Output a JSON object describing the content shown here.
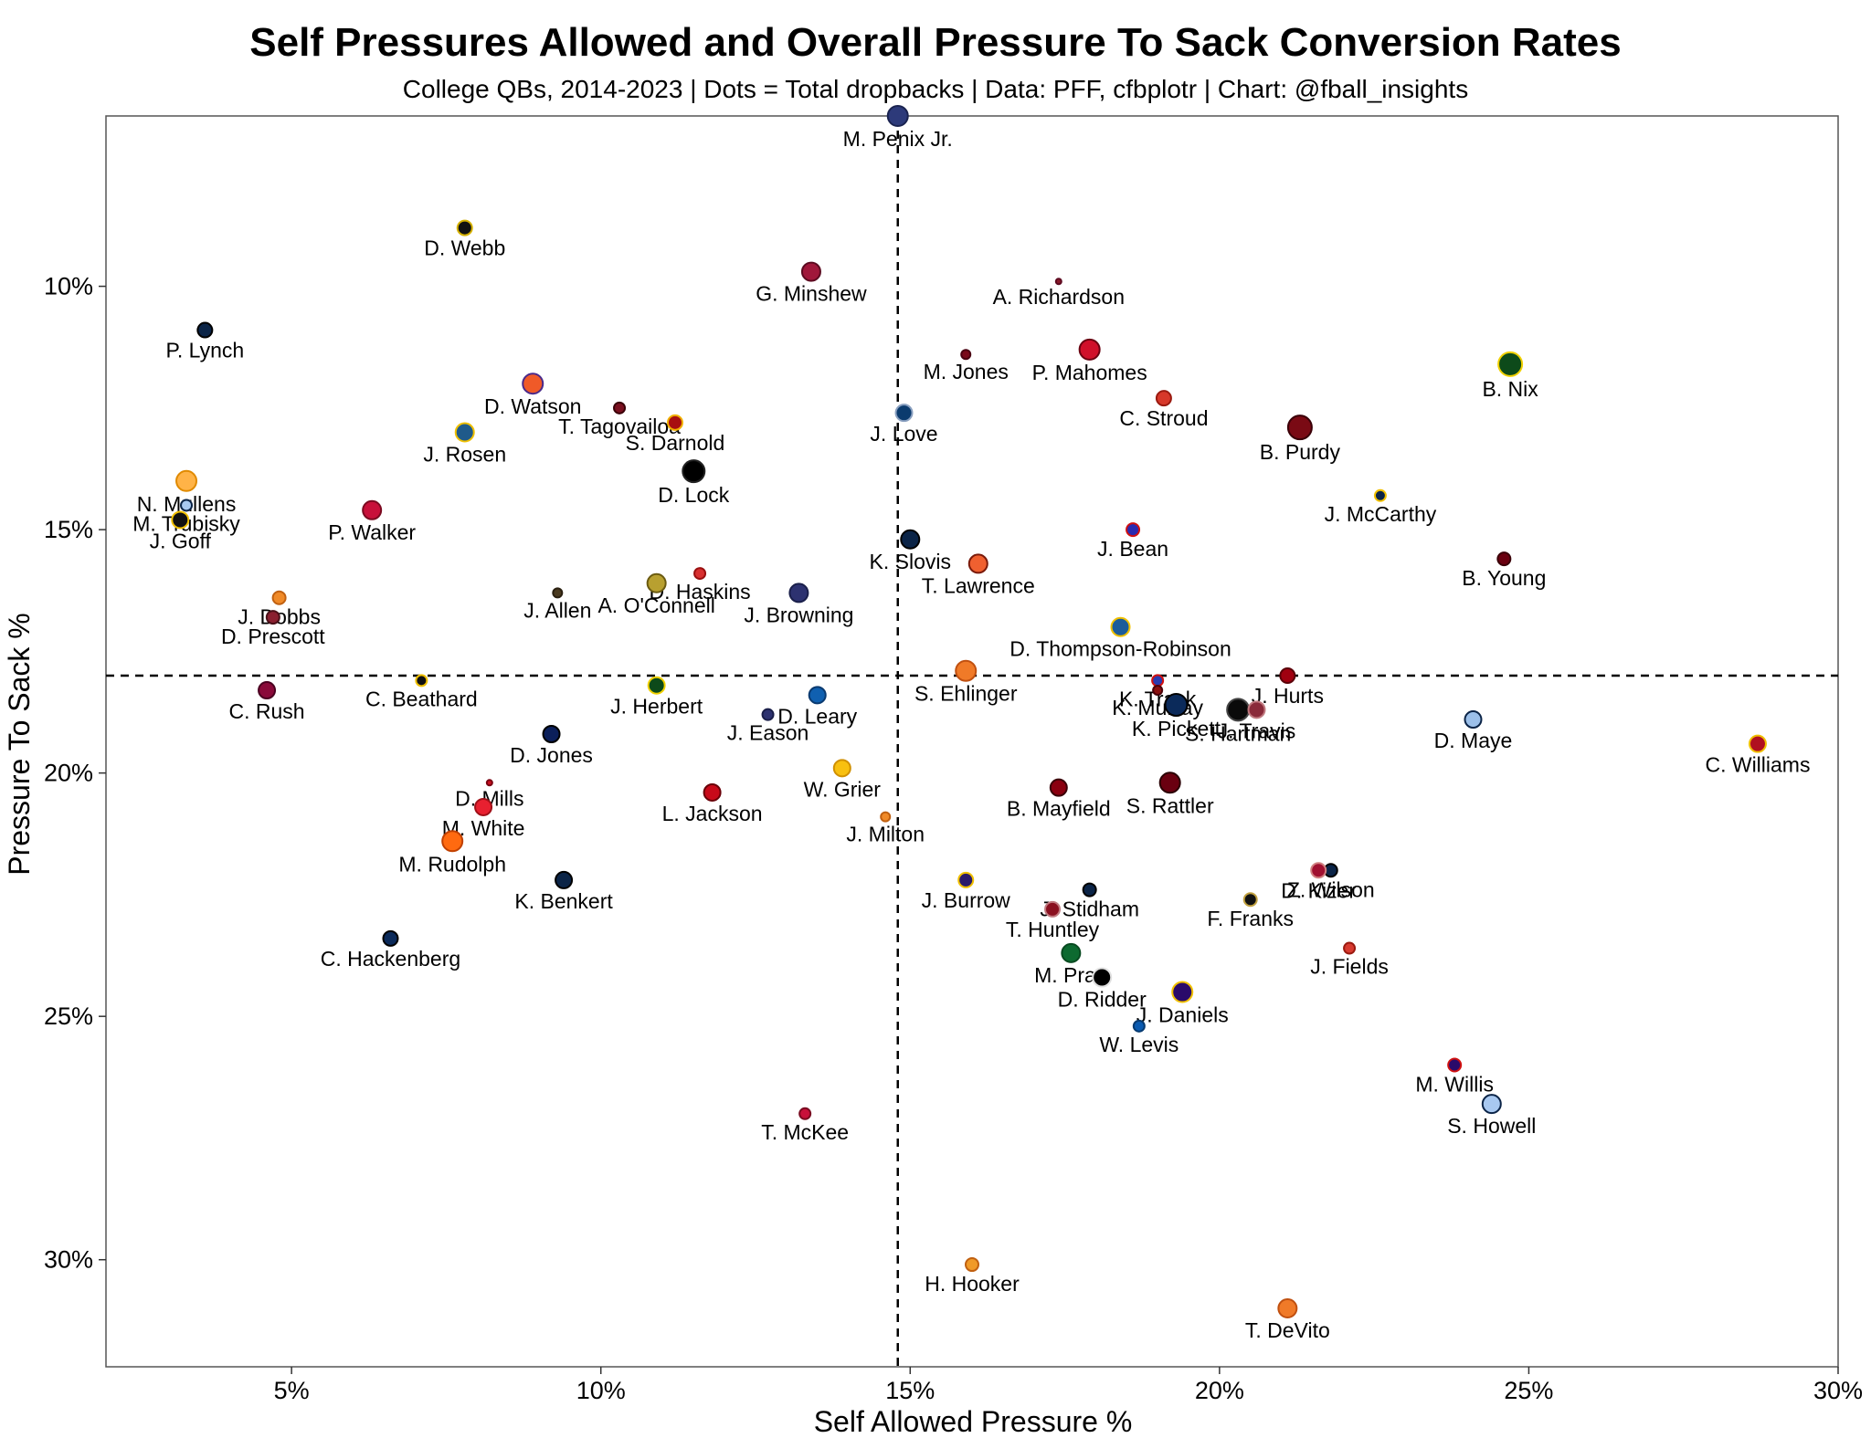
{
  "chart_data": {
    "type": "scatter",
    "title": "Self Pressures Allowed and Overall Pressure To Sack Conversion Rates",
    "subtitle": "College QBs, 2014-2023 | Dots = Total dropbacks | Data: PFF, cfbplotr | Chart: @fball_insights",
    "xlabel": "Self Allowed Pressure %",
    "ylabel": "Pressure To Sack %",
    "xlim": [
      2.0,
      30.0
    ],
    "ylim": [
      6.5,
      32.2
    ],
    "y_reversed": true,
    "x_ticks": [
      5,
      10,
      15,
      20,
      25,
      30
    ],
    "x_tick_labels": [
      "5%",
      "10%",
      "15%",
      "20%",
      "25%",
      "30%"
    ],
    "y_ticks": [
      10,
      15,
      20,
      25,
      30
    ],
    "y_tick_labels": [
      "10%",
      "15%",
      "20%",
      "25%",
      "30%"
    ],
    "ref_lines": {
      "x": 14.8,
      "y": 18.0
    },
    "points": [
      {
        "name": "M. Penix Jr.",
        "x": 14.8,
        "y": 6.5,
        "size": 11,
        "color": "#2d3a7a",
        "edge": "#1a2350"
      },
      {
        "name": "D. Webb",
        "x": 7.8,
        "y": 8.8,
        "size": 8,
        "color": "#111111",
        "edge": "#d4b000"
      },
      {
        "name": "G. Minshew",
        "x": 13.4,
        "y": 9.7,
        "size": 10,
        "color": "#a0173a",
        "edge": "#5c0a20"
      },
      {
        "name": "A. Richardson",
        "x": 17.4,
        "y": 9.9,
        "size": 3,
        "color": "#8a1a2a",
        "edge": "#5c0a20"
      },
      {
        "name": "P. Lynch",
        "x": 3.6,
        "y": 10.9,
        "size": 8,
        "color": "#0b2447",
        "edge": "#000000"
      },
      {
        "name": "M. Jones",
        "x": 15.9,
        "y": 11.4,
        "size": 5,
        "color": "#7a0a1a",
        "edge": "#4a0010"
      },
      {
        "name": "P. Mahomes",
        "x": 17.9,
        "y": 11.3,
        "size": 11,
        "color": "#d0102a",
        "edge": "#6a0010"
      },
      {
        "name": "B. Nix",
        "x": 24.7,
        "y": 11.6,
        "size": 13,
        "color": "#0d4a1a",
        "edge": "#f0d000"
      },
      {
        "name": "D. Watson",
        "x": 8.9,
        "y": 12.0,
        "size": 11,
        "color": "#f05a28",
        "edge": "#4a2a8a"
      },
      {
        "name": "C. Stroud",
        "x": 19.1,
        "y": 12.3,
        "size": 8,
        "color": "#d7382a",
        "edge": "#9a1a10"
      },
      {
        "name": "T. Tagovailoa",
        "x": 10.3,
        "y": 12.5,
        "size": 6,
        "color": "#7a1020",
        "edge": "#3a0008"
      },
      {
        "name": "J. Love",
        "x": 14.9,
        "y": 12.6,
        "size": 9,
        "color": "#0b3b6e",
        "edge": "#8aa0c0"
      },
      {
        "name": "S. Darnold",
        "x": 11.2,
        "y": 12.8,
        "size": 8,
        "color": "#a81010",
        "edge": "#f0b000"
      },
      {
        "name": "B. Purdy",
        "x": 21.3,
        "y": 12.9,
        "size": 13,
        "color": "#7a0a14",
        "edge": "#3a0008"
      },
      {
        "name": "J. Rosen",
        "x": 7.8,
        "y": 13.0,
        "size": 10,
        "color": "#1f5a8a",
        "edge": "#f0c000"
      },
      {
        "name": "D. Lock",
        "x": 11.5,
        "y": 13.8,
        "size": 12,
        "color": "#000000",
        "edge": "#222222"
      },
      {
        "name": "N. Mullens",
        "x": 3.3,
        "y": 14.0,
        "size": 11,
        "color": "#ffb347",
        "edge": "#e08a00"
      },
      {
        "name": "J. McCarthy",
        "x": 22.6,
        "y": 14.3,
        "size": 6,
        "color": "#0b2447",
        "edge": "#f0c000"
      },
      {
        "name": "M. Trubisky",
        "x": 3.3,
        "y": 14.5,
        "size": 6,
        "color": "#a8c8f0",
        "edge": "#0b2447"
      },
      {
        "name": "P. Walker",
        "x": 6.3,
        "y": 14.6,
        "size": 10,
        "color": "#c8103a",
        "edge": "#7a0a20"
      },
      {
        "name": "J. Goff",
        "x": 3.2,
        "y": 14.8,
        "size": 9,
        "color": "#111111",
        "edge": "#f0c000"
      },
      {
        "name": "J. Bean",
        "x": 18.6,
        "y": 15.0,
        "size": 7,
        "color": "#2a2ab0",
        "edge": "#d01010"
      },
      {
        "name": "K. Slovis",
        "x": 15.0,
        "y": 15.2,
        "size": 10,
        "color": "#0b2447",
        "edge": "#000000"
      },
      {
        "name": "B. Young",
        "x": 24.6,
        "y": 15.6,
        "size": 7,
        "color": "#6a0010",
        "edge": "#3a0008"
      },
      {
        "name": "T. Lawrence",
        "x": 16.1,
        "y": 15.7,
        "size": 10,
        "color": "#f06030",
        "edge": "#7a1a0a"
      },
      {
        "name": "D. Haskins",
        "x": 11.6,
        "y": 15.9,
        "size": 6,
        "color": "#d83030",
        "edge": "#9a1010"
      },
      {
        "name": "A. O'Connell",
        "x": 10.9,
        "y": 16.1,
        "size": 10,
        "color": "#b8a030",
        "edge": "#6a5a10"
      },
      {
        "name": "J. Allen",
        "x": 9.3,
        "y": 16.3,
        "size": 5,
        "color": "#4a3a20",
        "edge": "#2a2010"
      },
      {
        "name": "J. Dobbs",
        "x": 4.8,
        "y": 16.4,
        "size": 7,
        "color": "#f08a28",
        "edge": "#c06010"
      },
      {
        "name": "J. Browning",
        "x": 13.2,
        "y": 16.3,
        "size": 10,
        "color": "#2d3270",
        "edge": "#1a1f4a"
      },
      {
        "name": "D. Prescott",
        "x": 4.7,
        "y": 16.8,
        "size": 7,
        "color": "#8a2030",
        "edge": "#4a1018"
      },
      {
        "name": "D. Thompson-Robinson",
        "x": 18.4,
        "y": 17.0,
        "size": 10,
        "color": "#1d5c9a",
        "edge": "#f0c000"
      },
      {
        "name": "S. Ehlinger",
        "x": 15.9,
        "y": 17.9,
        "size": 11,
        "color": "#f07a28",
        "edge": "#c05010"
      },
      {
        "name": "J. Hurts",
        "x": 21.1,
        "y": 18.0,
        "size": 8,
        "color": "#a00010",
        "edge": "#5a0008"
      },
      {
        "name": "K. Trask",
        "x": 19.0,
        "y": 18.1,
        "size": 6,
        "color": "#2a3ab0",
        "edge": "#d01010"
      },
      {
        "name": "C. Beathard",
        "x": 7.1,
        "y": 18.1,
        "size": 6,
        "color": "#111111",
        "edge": "#f0c000"
      },
      {
        "name": "J. Herbert",
        "x": 10.9,
        "y": 18.2,
        "size": 9,
        "color": "#0d4a1a",
        "edge": "#f0d000"
      },
      {
        "name": "C. Rush",
        "x": 4.6,
        "y": 18.3,
        "size": 9,
        "color": "#8a0a3a",
        "edge": "#4a0020"
      },
      {
        "name": "K. Murray",
        "x": 19.0,
        "y": 18.3,
        "size": 5,
        "color": "#8a1010",
        "edge": "#4a0008"
      },
      {
        "name": "D. Leary",
        "x": 13.5,
        "y": 18.4,
        "size": 9,
        "color": "#1060b0",
        "edge": "#0a3a70"
      },
      {
        "name": "K. Pickett",
        "x": 19.3,
        "y": 18.6,
        "size": 12,
        "color": "#0b2a5a",
        "edge": "#000000"
      },
      {
        "name": "S. Hartman",
        "x": 20.3,
        "y": 18.7,
        "size": 12,
        "color": "#0a0a0a",
        "edge": "#444444"
      },
      {
        "name": "J. Travis",
        "x": 20.6,
        "y": 18.7,
        "size": 9,
        "color": "#8a2a3a",
        "edge": "#c07a80"
      },
      {
        "name": "J. Eason",
        "x": 12.7,
        "y": 18.8,
        "size": 6,
        "color": "#2d3270",
        "edge": "#1a1f4a"
      },
      {
        "name": "D. Maye",
        "x": 24.1,
        "y": 18.9,
        "size": 9,
        "color": "#9cc0ea",
        "edge": "#0b2447"
      },
      {
        "name": "D. Jones",
        "x": 9.2,
        "y": 19.2,
        "size": 9,
        "color": "#0b1f5a",
        "edge": "#000000"
      },
      {
        "name": "C. Williams",
        "x": 28.7,
        "y": 19.4,
        "size": 9,
        "color": "#b01020",
        "edge": "#f0c000"
      },
      {
        "name": "W. Grier",
        "x": 13.9,
        "y": 19.9,
        "size": 9,
        "color": "#f8c010",
        "edge": "#d09000"
      },
      {
        "name": "S. Rattler",
        "x": 19.2,
        "y": 20.2,
        "size": 11,
        "color": "#6a0010",
        "edge": "#2a0004"
      },
      {
        "name": "D. Mills",
        "x": 8.2,
        "y": 20.2,
        "size": 3,
        "color": "#c81020",
        "edge": "#7a0010"
      },
      {
        "name": "B. Mayfield",
        "x": 17.4,
        "y": 20.3,
        "size": 9,
        "color": "#8a0010",
        "edge": "#3a0008"
      },
      {
        "name": "L. Jackson",
        "x": 11.8,
        "y": 20.4,
        "size": 9,
        "color": "#c80a1a",
        "edge": "#6a0008"
      },
      {
        "name": "M. White",
        "x": 8.1,
        "y": 20.7,
        "size": 9,
        "color": "#e82030",
        "edge": "#a01018"
      },
      {
        "name": "J. Milton",
        "x": 14.6,
        "y": 20.9,
        "size": 5,
        "color": "#f08a28",
        "edge": "#c06010"
      },
      {
        "name": "M. Rudolph",
        "x": 7.6,
        "y": 21.4,
        "size": 11,
        "color": "#ff6a10",
        "edge": "#c04000"
      },
      {
        "name": "Z. Wilson",
        "x": 21.8,
        "y": 22.0,
        "size": 7,
        "color": "#0b2447",
        "edge": "#000000"
      },
      {
        "name": "J. Burrow",
        "x": 15.9,
        "y": 22.2,
        "size": 8,
        "color": "#2a1a6a",
        "edge": "#f0c000"
      },
      {
        "name": "K. Benkert",
        "x": 9.4,
        "y": 22.2,
        "size": 9,
        "color": "#0b2447",
        "edge": "#000000"
      },
      {
        "name": "J. Stidham",
        "x": 17.9,
        "y": 22.4,
        "size": 7,
        "color": "#0b2447",
        "edge": "#000000"
      },
      {
        "name": "F. Franks",
        "x": 20.5,
        "y": 22.6,
        "size": 7,
        "color": "#111111",
        "edge": "#c0a040"
      },
      {
        "name": "D. Kizer",
        "x": 21.6,
        "y": 22.0,
        "size": 8,
        "color": "#a01030",
        "edge": "#d08080"
      },
      {
        "name": "T. Huntley",
        "x": 17.3,
        "y": 22.8,
        "size": 8,
        "color": "#8a1020",
        "edge": "#c07a80"
      },
      {
        "name": "C. Hackenberg",
        "x": 6.6,
        "y": 23.4,
        "size": 8,
        "color": "#0b2a5a",
        "edge": "#000000"
      },
      {
        "name": "J. Fields",
        "x": 22.1,
        "y": 23.6,
        "size": 6,
        "color": "#d83a30",
        "edge": "#9a1a10"
      },
      {
        "name": "M. Pratt",
        "x": 17.6,
        "y": 23.7,
        "size": 10,
        "color": "#0d6a30",
        "edge": "#084a20"
      },
      {
        "name": "D. Ridder",
        "x": 18.1,
        "y": 24.2,
        "size": 10,
        "color": "#000000",
        "edge": "#e0e0e0"
      },
      {
        "name": "J. Daniels",
        "x": 19.4,
        "y": 24.5,
        "size": 11,
        "color": "#2a0a6a",
        "edge": "#f0c000"
      },
      {
        "name": "W. Levis",
        "x": 18.7,
        "y": 25.2,
        "size": 6,
        "color": "#0a5ab0",
        "edge": "#063a70"
      },
      {
        "name": "M. Willis",
        "x": 23.8,
        "y": 26.0,
        "size": 7,
        "color": "#2a0a6a",
        "edge": "#d01010"
      },
      {
        "name": "S. Howell",
        "x": 24.4,
        "y": 26.8,
        "size": 10,
        "color": "#a8c8f0",
        "edge": "#0b2447"
      },
      {
        "name": "T. McKee",
        "x": 13.3,
        "y": 27.0,
        "size": 6,
        "color": "#c8103a",
        "edge": "#7a0a20"
      },
      {
        "name": "H. Hooker",
        "x": 16.0,
        "y": 30.1,
        "size": 7,
        "color": "#f09a28",
        "edge": "#c06010"
      },
      {
        "name": "T. DeVito",
        "x": 21.1,
        "y": 31.0,
        "size": 10,
        "color": "#f07a28",
        "edge": "#c05010"
      }
    ]
  }
}
